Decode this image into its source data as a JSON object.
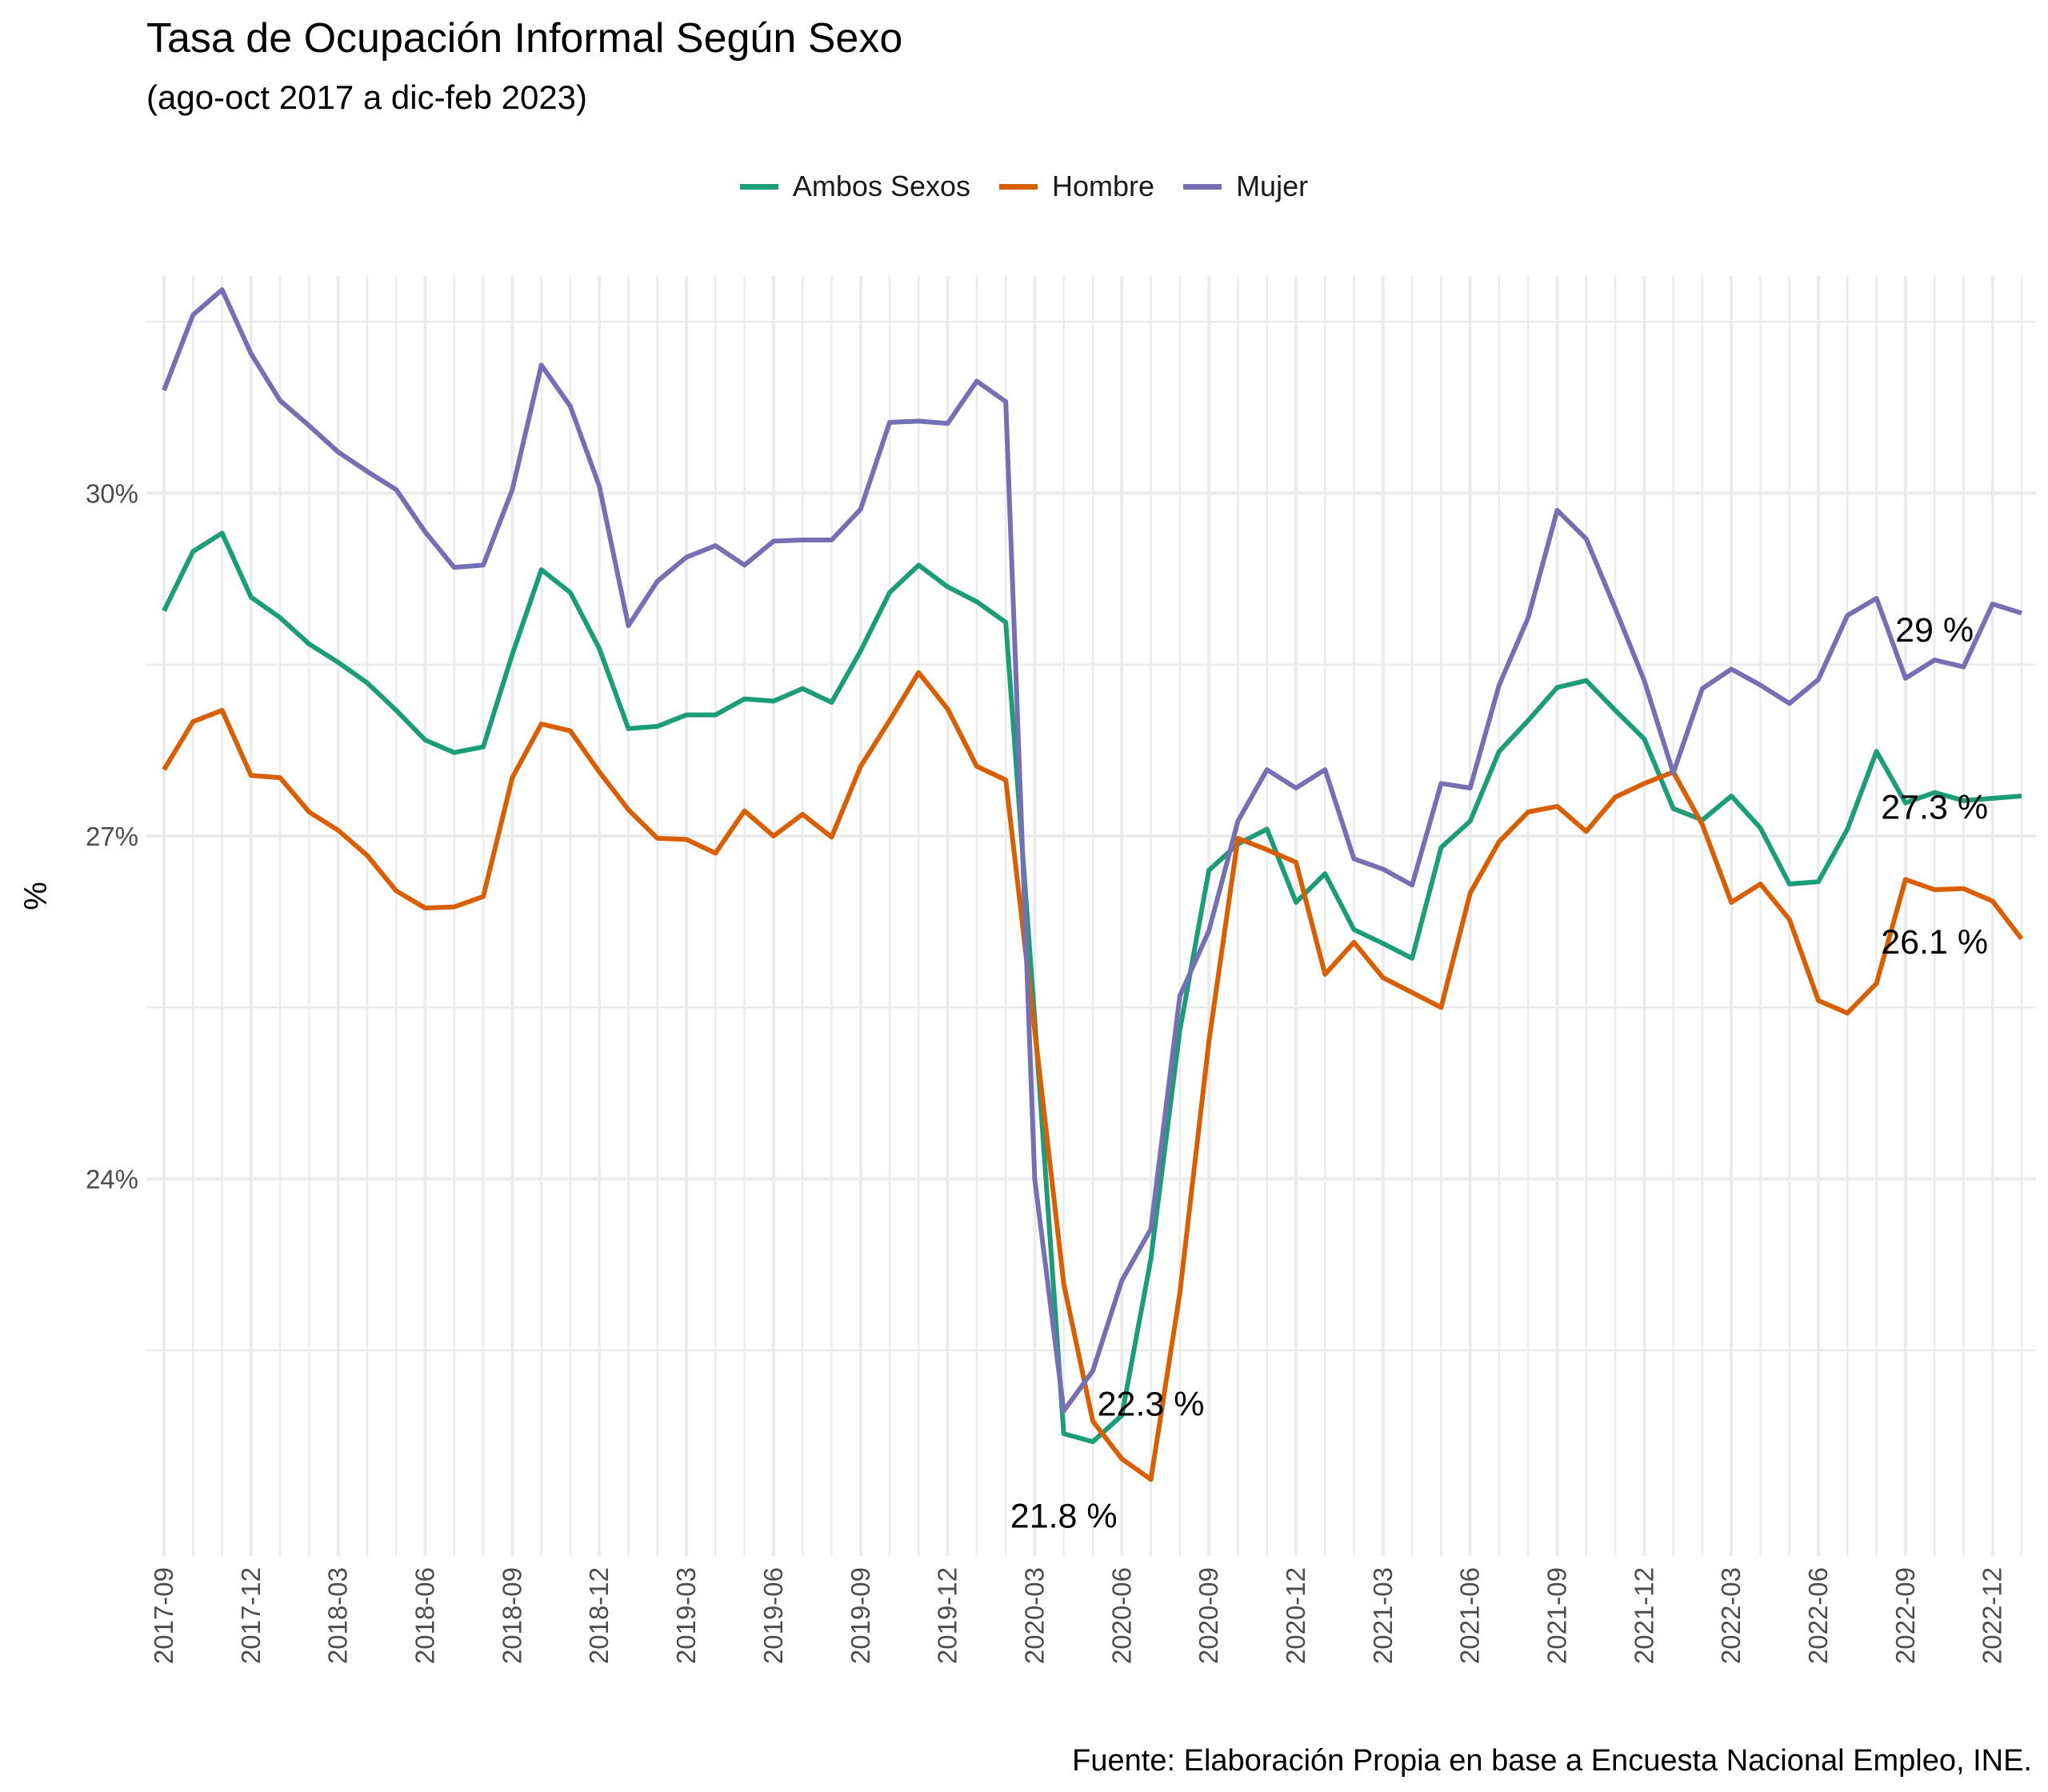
{
  "title": "Tasa de Ocupación Informal Según Sexo",
  "subtitle": "(ago-oct 2017 a dic-feb 2023)",
  "caption": "Fuente: Elaboración Propia en base a Encuesta Nacional Empleo, INE.",
  "colors": {
    "ambos": "#1B9E77",
    "hombre": "#D95F02",
    "mujer": "#7570B3",
    "grid": "#EBEBEB"
  },
  "chart_data": {
    "type": "line",
    "title": "Tasa de Ocupación Informal Según Sexo",
    "subtitle": "(ago-oct 2017 a dic-feb 2023)",
    "xlabel": "",
    "ylabel": "%",
    "ylim": [
      20.7,
      31.9
    ],
    "yticks": [
      24,
      27,
      30
    ],
    "ytick_labels": [
      "24%",
      "27%",
      "30%"
    ],
    "x": [
      "2017-09",
      "2017-10",
      "2017-11",
      "2017-12",
      "2018-01",
      "2018-02",
      "2018-03",
      "2018-04",
      "2018-05",
      "2018-06",
      "2018-07",
      "2018-08",
      "2018-09",
      "2018-10",
      "2018-11",
      "2018-12",
      "2019-01",
      "2019-02",
      "2019-03",
      "2019-04",
      "2019-05",
      "2019-06",
      "2019-07",
      "2019-08",
      "2019-09",
      "2019-10",
      "2019-11",
      "2019-12",
      "2020-01",
      "2020-02",
      "2020-03",
      "2020-04",
      "2020-05",
      "2020-06",
      "2020-07",
      "2020-08",
      "2020-09",
      "2020-10",
      "2020-11",
      "2020-12",
      "2021-01",
      "2021-02",
      "2021-03",
      "2021-04",
      "2021-05",
      "2021-06",
      "2021-07",
      "2021-08",
      "2021-09",
      "2021-10",
      "2021-11",
      "2021-12",
      "2022-01",
      "2022-02",
      "2022-03",
      "2022-04",
      "2022-05",
      "2022-06",
      "2022-07",
      "2022-08",
      "2022-09",
      "2022-10",
      "2022-11",
      "2022-12",
      "2023-01"
    ],
    "xtick_labels": [
      "2017-09",
      "2017-12",
      "2018-03",
      "2018-06",
      "2018-09",
      "2018-12",
      "2019-03",
      "2019-06",
      "2019-09",
      "2019-12",
      "2020-03",
      "2020-06",
      "2020-09",
      "2020-12",
      "2021-03",
      "2021-06",
      "2021-09",
      "2021-12",
      "2022-03",
      "2022-06",
      "2022-09",
      "2022-12"
    ],
    "legend_position": "top",
    "grid": true,
    "series": [
      {
        "name": "Ambos Sexos",
        "color": "#1B9E77",
        "values": [
          28.97,
          29.49,
          29.65,
          29.09,
          28.91,
          28.68,
          28.52,
          28.34,
          28.1,
          27.84,
          27.73,
          27.78,
          28.59,
          29.33,
          29.13,
          28.64,
          27.94,
          27.96,
          28.06,
          28.06,
          28.2,
          28.18,
          28.29,
          28.17,
          28.62,
          29.13,
          29.37,
          29.18,
          29.05,
          28.87,
          25.4,
          21.77,
          21.7,
          21.93,
          23.3,
          25.3,
          26.7,
          26.93,
          27.06,
          26.42,
          26.67,
          26.18,
          26.06,
          25.93,
          26.9,
          27.13,
          27.74,
          28.01,
          28.3,
          28.36,
          28.1,
          27.85,
          27.24,
          27.14,
          27.35,
          27.07,
          26.58,
          26.6,
          27.06,
          27.74,
          27.29,
          27.38,
          27.31,
          27.33,
          27.35
        ]
      },
      {
        "name": "Hombre",
        "color": "#D95F02",
        "values": [
          27.58,
          28.0,
          28.1,
          27.53,
          27.51,
          27.21,
          27.05,
          26.83,
          26.52,
          26.37,
          26.38,
          26.47,
          27.51,
          27.98,
          27.92,
          27.56,
          27.23,
          26.98,
          26.97,
          26.85,
          27.22,
          27.0,
          27.19,
          26.99,
          27.61,
          28.01,
          28.43,
          28.11,
          27.61,
          27.49,
          25.3,
          23.08,
          21.88,
          21.55,
          21.37,
          23.0,
          25.2,
          26.98,
          26.88,
          26.77,
          25.79,
          26.07,
          25.76,
          25.63,
          25.5,
          26.5,
          26.95,
          27.21,
          27.26,
          27.04,
          27.34,
          27.46,
          27.56,
          27.1,
          26.42,
          26.58,
          26.27,
          25.56,
          25.45,
          25.71,
          26.62,
          26.53,
          26.54,
          26.43,
          26.1
        ]
      },
      {
        "name": "Mujer",
        "color": "#7570B3",
        "values": [
          30.9,
          31.56,
          31.78,
          31.22,
          30.81,
          30.59,
          30.36,
          30.19,
          30.03,
          29.66,
          29.35,
          29.37,
          30.03,
          31.12,
          30.76,
          30.06,
          28.84,
          29.23,
          29.44,
          29.54,
          29.37,
          29.58,
          29.59,
          29.59,
          29.86,
          30.62,
          30.63,
          30.61,
          30.98,
          30.8,
          24.0,
          21.97,
          22.32,
          23.11,
          23.56,
          25.6,
          26.17,
          27.13,
          27.58,
          27.42,
          27.58,
          26.8,
          26.71,
          26.57,
          27.46,
          27.42,
          28.32,
          28.91,
          29.85,
          29.6,
          28.99,
          28.36,
          27.55,
          28.29,
          28.46,
          28.32,
          28.16,
          28.37,
          28.93,
          29.08,
          28.38,
          28.54,
          28.48,
          29.03,
          28.95
        ]
      }
    ],
    "annotations": [
      "29 %",
      "27.3 %",
      "26.1 %",
      "22.3 %",
      "21.8 %"
    ]
  }
}
